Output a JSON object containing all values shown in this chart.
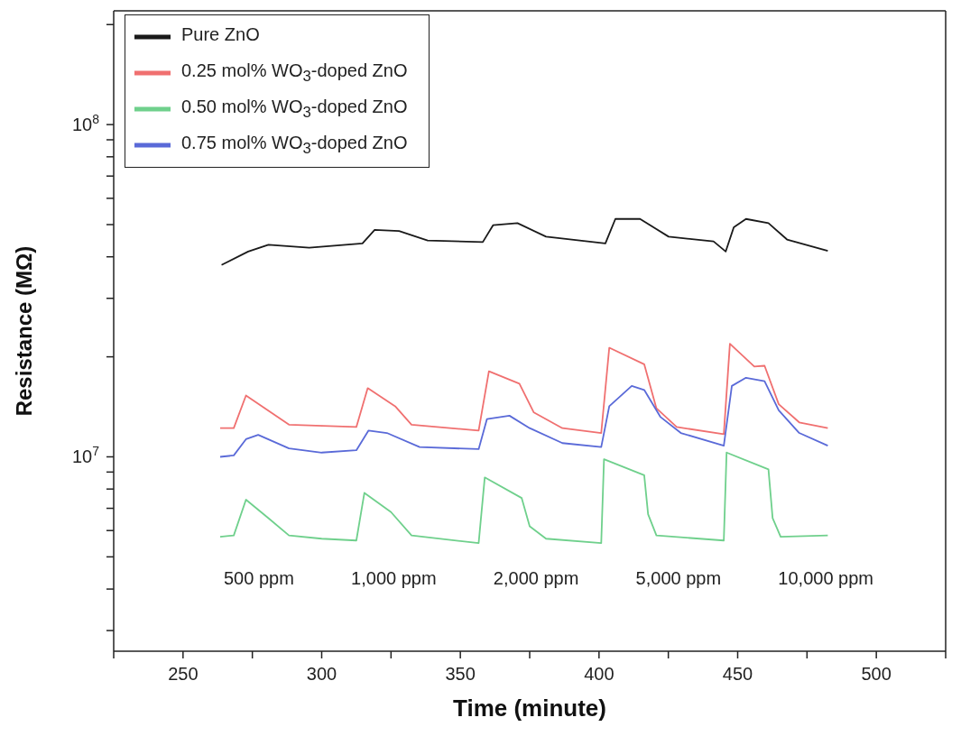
{
  "chart_data": {
    "type": "line",
    "xlabel": "Time (minute)",
    "ylabel": "Resistance  (MΩ)",
    "log": "y",
    "grid": false,
    "legend": "top left",
    "marker": "none",
    "line_style": "solid",
    "xlim": [
      225,
      525
    ],
    "xticks": [
      {
        "value": 225,
        "label": null
      },
      250,
      {
        "value": 275,
        "label": null
      },
      300,
      {
        "value": 325,
        "label": null
      },
      350,
      {
        "value": 375,
        "label": null
      },
      400,
      {
        "value": 425,
        "label": null
      },
      450,
      {
        "value": 475,
        "label": null
      },
      500,
      {
        "value": 525,
        "label": null
      }
    ],
    "ylim": [
      2600000,
      220000000
    ],
    "yticks": [
      {
        "value": 3000000,
        "label": null
      },
      {
        "value": 4000000,
        "label": null
      },
      {
        "value": 5000000,
        "label": null
      },
      {
        "value": 6000000,
        "label": null
      },
      {
        "value": 7000000,
        "label": null
      },
      {
        "value": 8000000,
        "label": null
      },
      {
        "value": 9000000,
        "label": null
      },
      {
        "value": 10000000,
        "label": "10$^{7}$"
      },
      {
        "value": 20000000,
        "label": null
      },
      {
        "value": 30000000,
        "label": null
      },
      {
        "value": 40000000,
        "label": null
      },
      {
        "value": 50000000,
        "label": null
      },
      {
        "value": 60000000,
        "label": null
      },
      {
        "value": 70000000,
        "label": null
      },
      {
        "value": 80000000,
        "label": null
      },
      {
        "value": 90000000,
        "label": null
      },
      {
        "value": 100000000,
        "label": "10$^{8}$"
      },
      {
        "value": 200000000,
        "label": null
      }
    ],
    "series": [
      {
        "name": "Pure ZnO",
        "color": "#1a1a1a",
        "x": [
          263.9,
          273.5,
          280.8,
          295.5,
          314.7,
          319.1,
          327.9,
          338.2,
          358.1,
          361.8,
          370.6,
          380.9,
          402.3,
          405.9,
          414.8,
          425.1,
          441.3,
          445.7,
          448.6,
          453,
          461.1,
          467.8,
          482.5
        ],
        "values": [
          37800000,
          41500000,
          43500000,
          42600000,
          43900000,
          48200000,
          47800000,
          44800000,
          44300000,
          49800000,
          50500000,
          46000000,
          43900000,
          52000000,
          52000000,
          46000000,
          44500000,
          41500000,
          49100000,
          52000000,
          50500000,
          45100000,
          41700000
        ]
      },
      {
        "name": "0.25 mol% WO$_{3}$-doped ZnO",
        "color": "#f07070",
        "x": [
          263.4,
          268.3,
          272.7,
          288.2,
          312.5,
          316.6,
          326.5,
          332.4,
          356.6,
          360.3,
          371.3,
          376.5,
          386.8,
          400.8,
          403.7,
          416.3,
          420.7,
          428,
          445,
          447.2,
          456,
          459.7,
          464.8,
          472.2,
          482.5
        ],
        "values": [
          12200000,
          12200000,
          15300000,
          12500000,
          12300000,
          16100000,
          14200000,
          12500000,
          12000000,
          18100000,
          16600000,
          13600000,
          12200000,
          11800000,
          21300000,
          19000000,
          14000000,
          12300000,
          11700000,
          21900000,
          18700000,
          18800000,
          14400000,
          12700000,
          12200000
        ]
      },
      {
        "name": "0.50 mol% WO$_{3}$-doped ZnO",
        "color": "#6fd08c",
        "x": [
          263.4,
          268.3,
          272.7,
          280.8,
          288.2,
          300,
          312.5,
          315.4,
          325,
          332.4,
          356.6,
          358.8,
          372.1,
          375,
          380.9,
          400.8,
          401.8,
          416.3,
          417.7,
          420.7,
          445,
          446,
          461.1,
          462.6,
          465.5,
          482.5
        ],
        "values": [
          5750000,
          5800000,
          7430000,
          6540000,
          5800000,
          5670000,
          5600000,
          7790000,
          6820000,
          5800000,
          5500000,
          8670000,
          7520000,
          6180000,
          5670000,
          5500000,
          9840000,
          8800000,
          6720000,
          5800000,
          5600000,
          10300000,
          9170000,
          6540000,
          5750000,
          5800000
        ]
      },
      {
        "name": "0.75 mol% WO$_{3}$-doped ZnO",
        "color": "#5a6ad8",
        "x": [
          263.4,
          268.3,
          272.7,
          277.1,
          288.2,
          300,
          312.5,
          316.9,
          323.5,
          335.3,
          356.6,
          359.6,
          367.7,
          375,
          386.8,
          400.8,
          403.7,
          411.8,
          416.3,
          422.1,
          429.5,
          445,
          447.9,
          453,
          459.7,
          464.8,
          472.2,
          482.5
        ],
        "values": [
          10000000,
          10100000,
          11300000,
          11650000,
          10600000,
          10300000,
          10470000,
          12000000,
          11800000,
          10700000,
          10550000,
          13000000,
          13300000,
          12200000,
          11000000,
          10700000,
          14200000,
          16350000,
          15900000,
          13200000,
          11800000,
          10800000,
          16350000,
          17300000,
          16900000,
          13800000,
          11800000,
          10800000
        ]
      }
    ],
    "annotations": [
      "500 ppm",
      "1,000 ppm",
      "2,000 ppm",
      "5,000 ppm",
      "10,000 ppm"
    ]
  }
}
